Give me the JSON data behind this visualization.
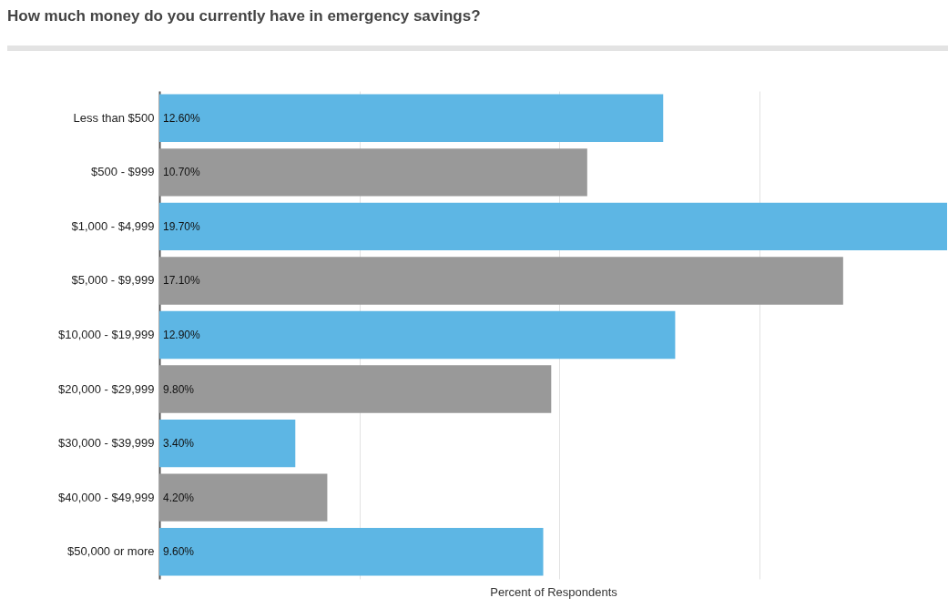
{
  "chart_data": {
    "type": "bar",
    "orientation": "horizontal",
    "title": "How much money do you currently have in emergency savings?",
    "xlabel": "Percent of Respondents",
    "categories": [
      "Less than $500",
      "$500 - $999",
      "$1,000 - $4,999",
      "$5,000 - $9,999",
      "$10,000 - $19,999",
      "$20,000 - $29,999",
      "$30,000 - $39,999",
      "$40,000 - $49,999",
      "$50,000 or more"
    ],
    "values": [
      12.6,
      10.7,
      19.7,
      17.1,
      12.9,
      9.8,
      3.4,
      4.2,
      9.6
    ],
    "value_labels": [
      "12.60%",
      "10.70%",
      "19.70%",
      "17.10%",
      "12.90%",
      "9.80%",
      "3.40%",
      "4.20%",
      "9.60%"
    ],
    "colors": [
      "#5db6e4",
      "#999999",
      "#5db6e4",
      "#999999",
      "#5db6e4",
      "#999999",
      "#5db6e4",
      "#999999",
      "#5db6e4"
    ],
    "xlim": [
      0,
      19.7
    ],
    "xticks": [
      {
        "value": 0,
        "label": null
      },
      {
        "value": 5,
        "label": null
      },
      {
        "value": 10,
        "label": null
      },
      {
        "value": 15,
        "label": null
      }
    ],
    "grid": "x",
    "tick_labels": "y"
  }
}
